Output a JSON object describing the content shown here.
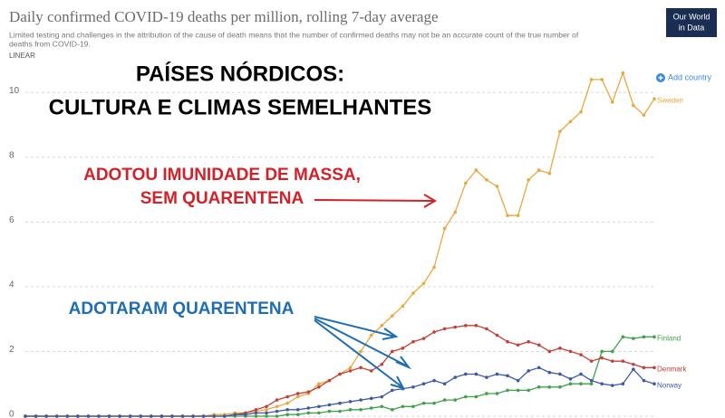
{
  "chart_data": {
    "type": "line",
    "title": "Daily confirmed COVID-19 deaths per million, rolling 7-day average",
    "subtitle": [
      "Limited testing and challenges in the attribution of the cause of death means that the number of confirmed deaths may not be an accurate count of the true number of",
      "deaths from COVID-19."
    ],
    "scale_label": "LINEAR",
    "logo": [
      "Our World",
      "in Data"
    ],
    "button": "Add country",
    "annotations": [
      {
        "text": [
          "PAÍSES NÓRDICOS:",
          "CULTURA E CLIMAS SEMELHANTES"
        ],
        "color": "#000000"
      },
      {
        "text": [
          "ADOTOU IMUNIDADE DE MASSA,",
          "SEM QUARENTENA"
        ],
        "color": "#d42027"
      },
      {
        "text": [
          "ADOTARAM QUARENTENA"
        ],
        "color": "#1f6db3"
      }
    ],
    "categories": [
      null,
      null,
      null,
      null,
      null,
      null,
      null,
      null,
      null,
      null,
      null,
      null,
      null,
      null,
      null,
      null,
      null,
      null,
      null,
      null,
      null,
      null,
      null,
      null,
      null,
      null,
      null,
      null,
      null,
      null,
      null,
      null,
      null,
      null,
      null,
      null,
      null,
      null,
      null,
      null,
      null,
      null,
      null,
      null,
      null,
      null,
      null,
      null,
      null,
      null,
      null,
      null,
      null,
      null,
      null,
      null,
      null,
      null,
      null,
      null,
      null
    ],
    "series": [
      {
        "name": "Sweden",
        "color": "#e8a83e",
        "values": [
          0,
          0,
          0,
          0,
          0,
          0,
          0,
          0,
          0,
          0,
          0,
          0,
          0,
          0,
          0,
          0,
          0,
          0,
          0.05,
          0.05,
          0.1,
          0.1,
          0.15,
          0.2,
          0.3,
          0.4,
          0.6,
          0.7,
          1.0,
          1.1,
          1.3,
          1.5,
          2.0,
          2.5,
          2.8,
          3.1,
          3.4,
          3.8,
          4.1,
          4.6,
          5.8,
          6.3,
          7.2,
          7.6,
          7.3,
          7.1,
          6.2,
          6.2,
          7.3,
          7.6,
          7.5,
          8.8,
          9.1,
          9.4,
          10.4,
          10.4,
          9.7,
          10.6,
          9.6,
          9.3,
          9.8
        ]
      },
      {
        "name": "Finland",
        "color": "#3fa24b",
        "values": [
          0,
          0,
          0,
          0,
          0,
          0,
          0,
          0,
          0,
          0,
          0,
          0,
          0,
          0,
          0,
          0,
          0,
          0,
          0,
          0,
          0,
          0,
          0,
          0,
          0,
          0.05,
          0.05,
          0.1,
          0.1,
          0.15,
          0.15,
          0.2,
          0.2,
          0.25,
          0.3,
          0.2,
          0.3,
          0.3,
          0.4,
          0.4,
          0.5,
          0.5,
          0.6,
          0.6,
          0.7,
          0.7,
          0.8,
          0.8,
          0.8,
          0.9,
          0.9,
          0.9,
          1.0,
          1.0,
          1.0,
          2.0,
          2.0,
          2.45,
          2.4,
          2.45,
          2.45
        ]
      },
      {
        "name": "Denmark",
        "color": "#c4403a",
        "values": [
          0,
          0,
          0,
          0,
          0,
          0,
          0,
          0,
          0,
          0,
          0,
          0,
          0,
          0,
          0,
          0,
          0,
          0,
          0,
          0,
          0.05,
          0.1,
          0.2,
          0.3,
          0.5,
          0.6,
          0.7,
          0.75,
          0.9,
          1.1,
          1.3,
          1.4,
          1.5,
          1.4,
          1.6,
          2.0,
          2.1,
          2.3,
          2.4,
          2.6,
          2.7,
          2.75,
          2.8,
          2.8,
          2.7,
          2.5,
          2.3,
          2.2,
          2.3,
          2.2,
          2.0,
          2.1,
          2.0,
          1.9,
          1.7,
          1.8,
          1.7,
          1.7,
          1.6,
          1.5,
          1.5
        ]
      },
      {
        "name": "Norway",
        "color": "#3d5aa6",
        "values": [
          0,
          0,
          0,
          0,
          0,
          0,
          0,
          0,
          0,
          0,
          0,
          0,
          0,
          0,
          0,
          0,
          0,
          0,
          0,
          0,
          0.05,
          0.05,
          0.1,
          0.1,
          0.15,
          0.2,
          0.2,
          0.25,
          0.3,
          0.35,
          0.4,
          0.45,
          0.5,
          0.55,
          0.6,
          0.8,
          0.85,
          0.9,
          1.0,
          1.1,
          1.0,
          1.2,
          1.3,
          1.3,
          1.2,
          1.3,
          1.25,
          1.1,
          1.4,
          1.5,
          1.35,
          1.3,
          1.15,
          1.3,
          1.1,
          1.0,
          0.95,
          1.0,
          1.45,
          1.1,
          1.0
        ]
      }
    ],
    "ylim": [
      0,
      10.9
    ],
    "yticks": [
      0,
      2,
      4,
      6,
      8,
      10
    ],
    "grid": true
  }
}
